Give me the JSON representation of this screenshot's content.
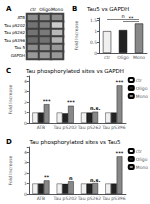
{
  "chart_data": [
    {
      "type": "heatmap",
      "annotations": [
        {
          "text": "A"
        }
      ],
      "categories": [
        "ctr",
        "Oligo",
        "Mono"
      ],
      "rows": [
        "ATB",
        "Tau pS202",
        "Tau pS262",
        "Tau pS396",
        "Tau 5",
        "GAPDH"
      ],
      "cells": [
        [
          0.55,
          0.55,
          0.55
        ],
        [
          0.45,
          0.5,
          0.8
        ],
        [
          0.45,
          0.48,
          0.72
        ],
        [
          0.42,
          0.45,
          0.7
        ],
        [
          0.55,
          0.57,
          0.6
        ],
        [
          0.6,
          0.6,
          0.6
        ]
      ],
      "color": "#404040"
    },
    {
      "type": "bar",
      "title": "Tau5 vs GAPDH",
      "annotations": [
        {
          "text": "B"
        },
        {
          "text": "**",
          "x1": "Oligo",
          "x2": "Mono",
          "y": 1.45
        },
        {
          "text": "n",
          "x1": "ctr",
          "x2": "Mono",
          "y": 1.54
        }
      ],
      "categories": [
        "ctr",
        "Oligo",
        "Mono"
      ],
      "values": [
        1.0,
        1.05,
        1.35
      ],
      "colors": [
        "#f0f0f0",
        "#222222",
        "#888888"
      ],
      "ylabel": "Fold Increase",
      "ylim": [
        0,
        1.6
      ],
      "yticks": [
        0,
        0.5,
        1,
        1.5
      ],
      "grid": false
    },
    {
      "type": "bar",
      "title": "Tau phosphorylated sites vs GAPDH",
      "annotations": [
        {
          "text": "C"
        },
        {
          "text": "***",
          "x": "ATB",
          "series": "Mono"
        },
        {
          "text": "***",
          "x": "Tau pS202",
          "series": "Mono"
        },
        {
          "text": "n.s.",
          "x": "Tau pS262",
          "series": "Mono"
        },
        {
          "text": "***",
          "x": "Tau pS396",
          "series": "Mono"
        }
      ],
      "categories": [
        "ATB",
        "Tau pS202",
        "Tau pS262",
        "Tau pS396"
      ],
      "series": [
        {
          "name": "ctr",
          "color": "#f0f0f0",
          "values": [
            1.0,
            1.0,
            1.0,
            1.0
          ]
        },
        {
          "name": "Oligo",
          "color": "#222222",
          "values": [
            1.0,
            0.93,
            1.0,
            1.0
          ]
        },
        {
          "name": "Mono",
          "color": "#888888",
          "values": [
            1.8,
            1.65,
            1.08,
            3.6
          ]
        }
      ],
      "ylabel": "Fold Increase",
      "ylim": [
        0,
        4.5
      ],
      "yticks": [
        0,
        1,
        2,
        3,
        4
      ],
      "legend": "upper right",
      "grid": false
    },
    {
      "type": "bar",
      "title": "Tau phosphorylated sites vs Tau5",
      "annotations": [
        {
          "text": "D"
        },
        {
          "text": "**",
          "x": "ATB",
          "series": "Mono"
        },
        {
          "text": "n",
          "x": "Tau pS202",
          "series": "Mono"
        },
        {
          "text": "n.s.",
          "x": "Tau pS262",
          "series": "Mono"
        },
        {
          "text": "***",
          "x": "Tau pS396",
          "series": "Mono"
        }
      ],
      "categories": [
        "ATB",
        "Tau pS202",
        "Tau pS262",
        "Tau pS396"
      ],
      "series": [
        {
          "name": "ctr",
          "color": "#f0f0f0",
          "values": [
            1.0,
            1.0,
            1.0,
            1.0
          ]
        },
        {
          "name": "Oligo",
          "color": "#222222",
          "values": [
            1.0,
            0.97,
            1.0,
            1.0
          ]
        },
        {
          "name": "Mono",
          "color": "#888888",
          "values": [
            1.3,
            1.22,
            1.05,
            3.6
          ]
        }
      ],
      "ylabel": "Fold Increase",
      "ylim": [
        0,
        4.5
      ],
      "yticks": [
        0,
        1,
        2,
        3,
        4
      ],
      "legend": "upper right",
      "grid": false
    }
  ]
}
